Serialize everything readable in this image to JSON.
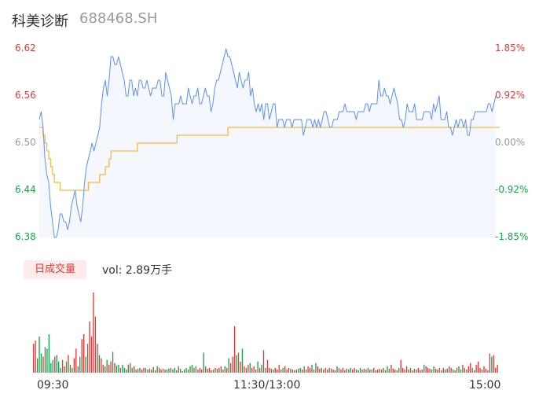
{
  "header": {
    "name": "科美诊断",
    "code": "688468.SH"
  },
  "colors": {
    "price_line": "#5b8ff9",
    "avg_line": "#f5b942",
    "up": "#e53935",
    "down": "#16a34a",
    "neutral": "#999999"
  },
  "chart_data": [
    {
      "type": "line",
      "title": "",
      "y_left_ticks": [
        "6.62",
        "6.56",
        "6.50",
        "6.44",
        "6.38"
      ],
      "y_right_ticks": [
        "1.85%",
        "0.92%",
        "0.00%",
        "-0.92%",
        "-1.85%"
      ],
      "ylim": [
        6.38,
        6.62
      ],
      "prev_close": 6.5,
      "series": [
        {
          "values": [
            6.53,
            6.54,
            6.52,
            6.48,
            6.46,
            6.45,
            6.42,
            6.4,
            6.38,
            6.38,
            6.39,
            6.41,
            6.41,
            6.4,
            6.4,
            6.39,
            6.4,
            6.42,
            6.43,
            6.44,
            6.42,
            6.41,
            6.4,
            6.42,
            6.45,
            6.47,
            6.48,
            6.49,
            6.5,
            6.49,
            6.5,
            6.51,
            6.52,
            6.55,
            6.57,
            6.58,
            6.56,
            6.58,
            6.61,
            6.61,
            6.6,
            6.6,
            6.61,
            6.6,
            6.59,
            6.58,
            6.56,
            6.56,
            6.58,
            6.58,
            6.56,
            6.57,
            6.56,
            6.58,
            6.58,
            6.57,
            6.57,
            6.58,
            6.57,
            6.56,
            6.57,
            6.57,
            6.57,
            6.58,
            6.58,
            6.56,
            6.56,
            6.59,
            6.58,
            6.57,
            6.56,
            6.53,
            6.55,
            6.55,
            6.55,
            6.56,
            6.55,
            6.55,
            6.55,
            6.57,
            6.56,
            6.55,
            6.56,
            6.56,
            6.57,
            6.55,
            6.55,
            6.56,
            6.57,
            6.56,
            6.56,
            6.54,
            6.55,
            6.57,
            6.58,
            6.58,
            6.59,
            6.6,
            6.61,
            6.62,
            6.61,
            6.61,
            6.6,
            6.59,
            6.58,
            6.57,
            6.59,
            6.58,
            6.57,
            6.58,
            6.58,
            6.59,
            6.56,
            6.57,
            6.55,
            6.54,
            6.55,
            6.54,
            6.55,
            6.53,
            6.55,
            6.55,
            6.53,
            6.54,
            6.55,
            6.55,
            6.52,
            6.53,
            6.53,
            6.53,
            6.52,
            6.53,
            6.53,
            6.53,
            6.52,
            6.53,
            6.53,
            6.53,
            6.53,
            6.53,
            6.51,
            6.52,
            6.53,
            6.53,
            6.53,
            6.52,
            6.53,
            6.52,
            6.53,
            6.52,
            6.53,
            6.54,
            6.54,
            6.53,
            6.52,
            6.52,
            6.53,
            6.53,
            6.53,
            6.54,
            6.54,
            6.54,
            6.55,
            6.54,
            6.54,
            6.54,
            6.54,
            6.54,
            6.53,
            6.54,
            6.54,
            6.54,
            6.54,
            6.55,
            6.55,
            6.54,
            6.55,
            6.55,
            6.55,
            6.55,
            6.58,
            6.56,
            6.56,
            6.57,
            6.56,
            6.56,
            6.55,
            6.56,
            6.57,
            6.56,
            6.55,
            6.53,
            6.53,
            6.52,
            6.53,
            6.55,
            6.54,
            6.54,
            6.54,
            6.55,
            6.53,
            6.53,
            6.53,
            6.53,
            6.54,
            6.54,
            6.54,
            6.54,
            6.53,
            6.55,
            6.54,
            6.55,
            6.56,
            6.53,
            6.53,
            6.53,
            6.54,
            6.52,
            6.52,
            6.51,
            6.52,
            6.53,
            6.52,
            6.53,
            6.53,
            6.52,
            6.53,
            6.51,
            6.51,
            6.53,
            6.53,
            6.54,
            6.54,
            6.54,
            6.54,
            6.54,
            6.54,
            6.54,
            6.55,
            6.55,
            6.54,
            6.55,
            6.56
          ]
        },
        {
          "values": [
            6.52,
            6.52,
            6.51,
            6.5,
            6.49,
            6.48,
            6.47,
            6.46,
            6.45,
            6.45,
            6.45,
            6.44,
            6.44,
            6.44,
            6.44,
            6.44,
            6.44,
            6.44,
            6.44,
            6.44,
            6.44,
            6.44,
            6.44,
            6.44,
            6.44,
            6.44,
            6.45,
            6.45,
            6.45,
            6.45,
            6.45,
            6.45,
            6.46,
            6.46,
            6.46,
            6.47,
            6.47,
            6.48,
            6.49,
            6.49,
            6.49,
            6.49,
            6.49,
            6.49,
            6.49,
            6.49,
            6.49,
            6.49,
            6.49,
            6.49,
            6.49,
            6.49,
            6.5,
            6.5,
            6.5,
            6.5,
            6.5,
            6.5,
            6.5,
            6.5,
            6.5,
            6.5,
            6.5,
            6.5,
            6.5,
            6.5,
            6.5,
            6.5,
            6.5,
            6.5,
            6.5,
            6.5,
            6.5,
            6.51,
            6.51,
            6.51,
            6.51,
            6.51,
            6.51,
            6.51,
            6.51,
            6.51,
            6.51,
            6.51,
            6.51,
            6.51,
            6.51,
            6.51,
            6.51,
            6.51,
            6.51,
            6.51,
            6.51,
            6.51,
            6.51,
            6.51,
            6.51,
            6.51,
            6.51,
            6.51,
            6.52,
            6.52,
            6.52,
            6.52,
            6.52,
            6.52,
            6.52,
            6.52,
            6.52,
            6.52,
            6.52,
            6.52,
            6.52,
            6.52,
            6.52,
            6.52,
            6.52,
            6.52,
            6.52,
            6.52,
            6.52,
            6.52,
            6.52,
            6.52,
            6.52,
            6.52,
            6.52,
            6.52,
            6.52,
            6.52,
            6.52,
            6.52,
            6.52,
            6.52,
            6.52,
            6.52,
            6.52,
            6.52,
            6.52,
            6.52,
            6.52,
            6.52,
            6.52,
            6.52,
            6.52,
            6.52,
            6.52,
            6.52,
            6.52,
            6.52,
            6.52,
            6.52,
            6.52,
            6.52,
            6.52,
            6.52,
            6.52,
            6.52,
            6.52,
            6.52,
            6.52,
            6.52,
            6.52,
            6.52,
            6.52,
            6.52,
            6.52,
            6.52,
            6.52,
            6.52,
            6.52,
            6.52,
            6.52,
            6.52,
            6.52,
            6.52,
            6.52,
            6.52,
            6.52,
            6.52,
            6.52,
            6.52,
            6.52,
            6.52,
            6.52,
            6.52,
            6.52,
            6.52,
            6.52,
            6.52,
            6.52,
            6.52,
            6.52,
            6.52,
            6.52,
            6.52,
            6.52,
            6.52,
            6.52,
            6.52,
            6.52,
            6.52,
            6.52,
            6.52,
            6.52,
            6.52,
            6.52,
            6.52,
            6.52,
            6.52,
            6.52,
            6.52,
            6.52,
            6.52,
            6.52,
            6.52,
            6.52,
            6.52,
            6.52,
            6.52,
            6.52,
            6.52,
            6.52,
            6.52,
            6.52,
            6.52,
            6.52,
            6.52,
            6.52,
            6.52,
            6.52,
            6.52,
            6.52,
            6.52,
            6.52,
            6.52,
            6.52,
            6.52,
            6.52,
            6.52,
            6.52,
            6.52,
            6.52,
            6.52,
            6.52
          ]
        }
      ]
    },
    {
      "type": "bar",
      "title": "",
      "x_ticks": [
        "09:30",
        "11:30/13:00",
        "15:00"
      ],
      "volume_label": "日成交量",
      "volume_text": "vol: 2.89万手",
      "values": [
        36,
        40,
        18,
        45,
        24,
        20,
        32,
        30,
        48,
        12,
        16,
        20,
        22,
        14,
        6,
        16,
        8,
        14,
        22,
        10,
        6,
        18,
        30,
        8,
        20,
        42,
        48,
        20,
        36,
        64,
        45,
        100,
        70,
        36,
        22,
        18,
        10,
        8,
        16,
        10,
        14,
        26,
        12,
        9,
        10,
        6,
        10,
        6,
        4,
        10,
        12,
        6,
        8,
        4,
        5,
        6,
        4,
        6,
        6,
        4,
        5,
        4,
        7,
        3,
        8,
        6,
        4,
        5,
        4,
        4,
        5,
        6,
        4,
        6,
        3,
        8,
        5,
        2,
        4,
        6,
        4,
        8,
        10,
        6,
        8,
        4,
        6,
        4,
        25,
        8,
        5,
        6,
        3,
        4,
        6,
        5,
        6,
        8,
        4,
        8,
        6,
        18,
        12,
        20,
        58,
        22,
        25,
        14,
        30,
        8,
        6,
        10,
        12,
        6,
        8,
        4,
        14,
        6,
        10,
        28,
        6,
        16,
        6,
        5,
        4,
        6,
        4,
        10,
        4,
        6,
        8,
        4,
        6,
        5,
        4,
        3,
        4,
        5,
        6,
        4,
        8,
        4,
        8,
        6,
        10,
        4,
        12,
        8,
        5,
        6,
        4,
        6,
        4,
        6,
        5,
        4,
        3,
        8,
        6,
        4,
        6,
        3,
        5,
        4,
        6,
        4,
        6,
        4,
        3,
        6,
        4,
        5,
        4,
        6,
        4,
        4,
        6,
        3,
        4,
        5,
        4,
        6,
        3,
        8,
        5,
        10,
        5,
        4,
        3,
        6,
        16,
        6,
        4,
        8,
        4,
        6,
        3,
        5,
        4,
        6,
        3,
        4,
        10,
        8,
        6,
        5,
        4,
        8,
        5,
        4,
        6,
        3,
        6,
        4,
        5,
        8,
        6,
        4,
        3,
        6,
        8,
        4,
        10,
        6,
        4,
        8,
        12,
        6,
        3,
        10,
        14,
        6,
        4,
        8,
        5,
        3,
        24,
        20,
        22,
        6,
        10
      ],
      "colors_up_down": [
        "u",
        "u",
        "d",
        "d",
        "d",
        "u",
        "d",
        "d",
        "d",
        "d",
        "d",
        "u",
        "d",
        "d",
        "d",
        "u",
        "u",
        "d",
        "u",
        "d",
        "d",
        "u",
        "u",
        "d",
        "d",
        "u",
        "u",
        "d",
        "u",
        "u",
        "u",
        "u",
        "u",
        "u",
        "d",
        "u",
        "u",
        "u",
        "d",
        "u",
        "u",
        "d",
        "u",
        "d",
        "d",
        "u",
        "d",
        "d",
        "d",
        "u",
        "d",
        "d",
        "u",
        "d",
        "u",
        "d",
        "u",
        "u",
        "d",
        "d",
        "u",
        "d",
        "u",
        "d",
        "d",
        "u",
        "u",
        "d",
        "u",
        "d",
        "d",
        "u",
        "d",
        "d",
        "d",
        "u",
        "d",
        "u",
        "d",
        "d",
        "u",
        "d",
        "d",
        "u",
        "d",
        "u",
        "u",
        "u",
        "d",
        "d",
        "u",
        "u",
        "u",
        "d",
        "u",
        "d",
        "u",
        "u",
        "u",
        "d",
        "u",
        "d",
        "u",
        "u",
        "u",
        "d",
        "u",
        "u",
        "d",
        "u",
        "u",
        "u",
        "d",
        "u",
        "u",
        "u",
        "d",
        "u",
        "d",
        "u",
        "d",
        "u",
        "u",
        "u",
        "d",
        "u",
        "u",
        "u",
        "u",
        "d",
        "u",
        "u",
        "u",
        "d",
        "u",
        "d",
        "u",
        "d",
        "d",
        "u",
        "d",
        "u",
        "u",
        "u",
        "d",
        "u",
        "d",
        "u",
        "u",
        "d",
        "u",
        "u",
        "d",
        "u",
        "u",
        "u",
        "u",
        "d",
        "u",
        "u",
        "u",
        "d",
        "u",
        "d",
        "d",
        "u",
        "u",
        "u",
        "d",
        "d",
        "u",
        "u",
        "u",
        "d",
        "u",
        "d",
        "u",
        "u",
        "u",
        "d",
        "u",
        "u",
        "d",
        "d",
        "u",
        "u",
        "u",
        "u",
        "d",
        "d",
        "u",
        "u",
        "u",
        "u",
        "u",
        "d",
        "u",
        "u",
        "d",
        "u",
        "u",
        "u",
        "d",
        "u",
        "u",
        "u",
        "d",
        "d",
        "u",
        "u",
        "d",
        "u",
        "u",
        "d",
        "u",
        "u",
        "u",
        "d",
        "u",
        "u",
        "d",
        "d",
        "u",
        "d",
        "u",
        "u",
        "u",
        "d",
        "d",
        "u",
        "u",
        "u",
        "u",
        "u",
        "u",
        "d",
        "u",
        "d",
        "u",
        "u",
        "u",
        "d"
      ]
    }
  ]
}
